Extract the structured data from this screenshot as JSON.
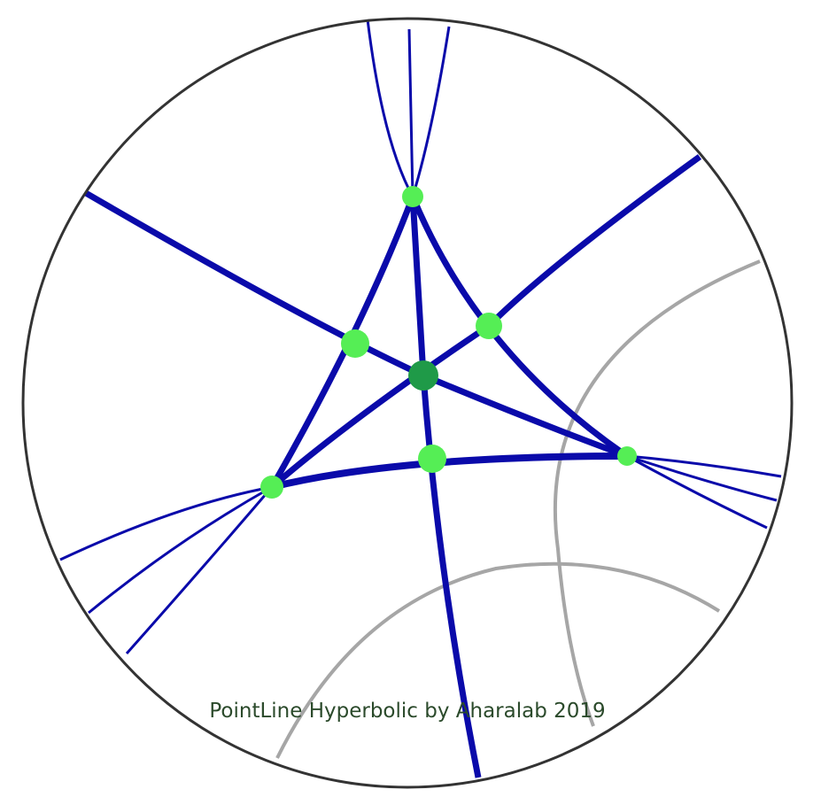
{
  "credit": "PointLine Hyperbolic by Aharalab 2019",
  "colors": {
    "background": "#ffffff",
    "disk_boundary": "#333333",
    "line": "#0a0aaa",
    "gray_line": "#a6a6a6",
    "vertex_point": "#55ee55",
    "center_point": "#1f9a48",
    "credit_text": "#2b4a2b"
  },
  "points": [
    {
      "name": "top-vertex",
      "kind": "vertex"
    },
    {
      "name": "left-midpoint",
      "kind": "vertex"
    },
    {
      "name": "right-midpoint",
      "kind": "vertex"
    },
    {
      "name": "center",
      "kind": "center"
    },
    {
      "name": "bottom-left-vertex",
      "kind": "vertex"
    },
    {
      "name": "bottom-midpoint",
      "kind": "vertex"
    },
    {
      "name": "right-vertex",
      "kind": "vertex"
    }
  ]
}
